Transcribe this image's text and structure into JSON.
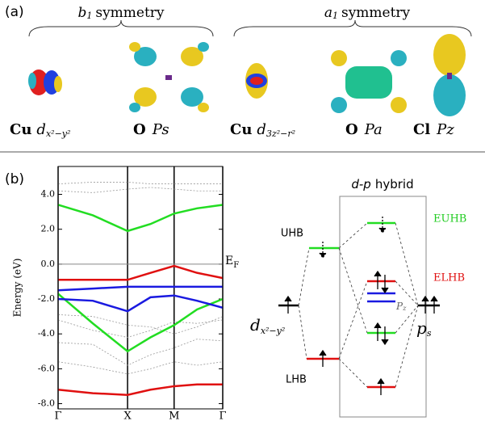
{
  "panel_a": {
    "label": "(a)",
    "groups": [
      {
        "symbol": "b",
        "sub": "1",
        "rest": "symmetry"
      },
      {
        "symbol": "a",
        "sub": "1",
        "rest": "symmetry"
      }
    ],
    "orbitals": [
      {
        "element": "Cu",
        "orbital": "d",
        "sub": "x²−y²"
      },
      {
        "element": "O",
        "orbital": "Ps"
      },
      {
        "element": "Cu",
        "orbital": "d",
        "sub": "3z²−r²"
      },
      {
        "element": "O",
        "orbital": "Pa"
      },
      {
        "element": "Cl",
        "orbital": "Pz"
      }
    ]
  },
  "panel_b_label": "(b)",
  "chart_data": {
    "type": "line",
    "ylabel": "Energy (eV)",
    "x": [
      0,
      0.5,
      1.0,
      1.33,
      1.67,
      2.0,
      2.37
    ],
    "xlim": [
      0,
      2.37
    ],
    "xticks": [
      {
        "value": 0,
        "label": "Γ"
      },
      {
        "value": 1.0,
        "label": "X"
      },
      {
        "value": 1.67,
        "label": "M"
      },
      {
        "value": 2.37,
        "label": "Γ"
      }
    ],
    "ylim": [
      -8.3,
      5.6
    ],
    "yticks": [
      {
        "value": 4,
        "label": "4.0"
      },
      {
        "value": 2,
        "label": "2.0"
      },
      {
        "value": 0,
        "label": "0.0"
      },
      {
        "value": -2,
        "label": "-2.0"
      },
      {
        "value": -4,
        "label": "-4.0"
      },
      {
        "value": -6,
        "label": "-6.0"
      },
      {
        "value": -8,
        "label": "-8.0"
      }
    ],
    "fermi_level": 0,
    "fermi_label": "E",
    "fermi_sub": "F",
    "series": [
      {
        "color": "#999999",
        "values": [
          4.6,
          4.7,
          4.7,
          4.6,
          4.6,
          4.6,
          4.6
        ]
      },
      {
        "color": "#999999",
        "values": [
          4.2,
          4.1,
          4.3,
          4.4,
          4.3,
          4.2,
          4.2
        ]
      },
      {
        "color": "#999999",
        "values": [
          -2.9,
          -3.0,
          -3.5,
          -3.6,
          -4.0,
          -3.6,
          -3.0
        ]
      },
      {
        "color": "#999999",
        "values": [
          -3.2,
          -3.8,
          -4.2,
          -3.8,
          -3.3,
          -3.4,
          -3.2
        ]
      },
      {
        "color": "#999999",
        "values": [
          -4.5,
          -4.6,
          -5.8,
          -5.2,
          -4.8,
          -4.3,
          -4.4
        ]
      },
      {
        "color": "#999999",
        "values": [
          -5.6,
          -5.9,
          -6.3,
          -6.0,
          -5.6,
          -5.8,
          -5.6
        ]
      },
      {
        "color": "#22dd22",
        "values": [
          3.4,
          2.8,
          1.9,
          2.3,
          2.9,
          3.2,
          3.4
        ]
      },
      {
        "color": "#22dd22",
        "values": [
          -1.7,
          -3.4,
          -5.0,
          -4.2,
          -3.5,
          -2.6,
          -2.0
        ]
      },
      {
        "color": "#e01010",
        "values": [
          -0.9,
          -0.9,
          -0.9,
          -0.5,
          -0.1,
          -0.5,
          -0.8
        ]
      },
      {
        "color": "#e01010",
        "values": [
          -7.2,
          -7.4,
          -7.5,
          -7.2,
          -7.0,
          -6.9,
          -6.9
        ]
      },
      {
        "color": "#1a1ae0",
        "values": [
          -1.5,
          -1.4,
          -1.3,
          -1.3,
          -1.3,
          -1.3,
          -1.3
        ]
      },
      {
        "color": "#1a1ae0",
        "values": [
          -2.0,
          -2.1,
          -2.7,
          -1.9,
          -1.8,
          -2.1,
          -2.5
        ]
      }
    ]
  },
  "diagram": {
    "title_italic": "d-p",
    "title": "hybrid",
    "uhb": "UHB",
    "lhb": "LHB",
    "euhb": "EUHB",
    "elhb": "ELHB",
    "pz": "P",
    "pz_sub": "z",
    "d": "d",
    "d_sub": "x²−y²",
    "p": "p",
    "p_sub": "s"
  }
}
